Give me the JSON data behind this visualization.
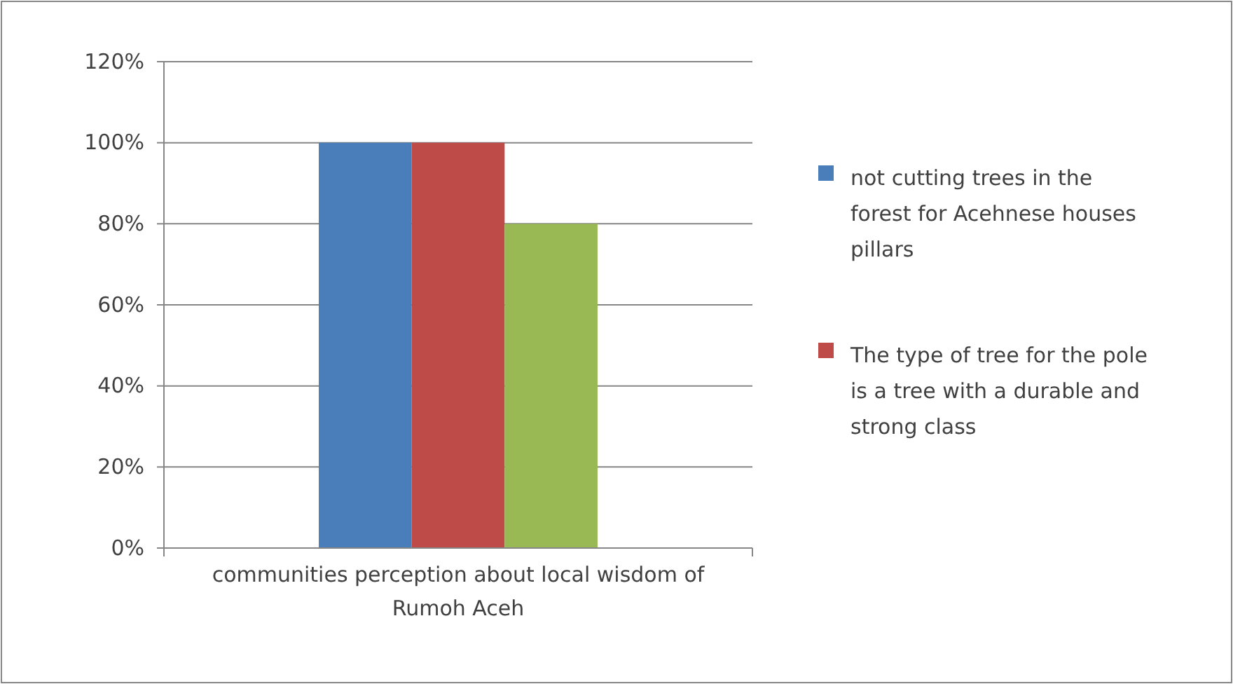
{
  "chart_data": {
    "type": "bar",
    "categories": [
      "communities perception about local wisdom of Rumoh Aceh"
    ],
    "series": [
      {
        "name": "not cutting trees in the forest for Acehnese houses pillars",
        "color": "#4a7ebb",
        "values": [
          100
        ]
      },
      {
        "name": "The type of tree for the pole is a tree with a durable and strong class",
        "color": "#be4b48",
        "values": [
          100
        ]
      },
      {
        "color": "#98b954",
        "values": [
          80
        ]
      }
    ],
    "ylim": [
      0,
      120
    ],
    "yticks": [
      {
        "value": 0,
        "label": "0%"
      },
      {
        "value": 20,
        "label": "20%"
      },
      {
        "value": 40,
        "label": "40%"
      },
      {
        "value": 60,
        "label": "60%"
      },
      {
        "value": 80,
        "label": "80%"
      },
      {
        "value": 100,
        "label": "100%"
      },
      {
        "value": 120,
        "label": "120%"
      }
    ],
    "grid": "y",
    "legend": "right"
  }
}
